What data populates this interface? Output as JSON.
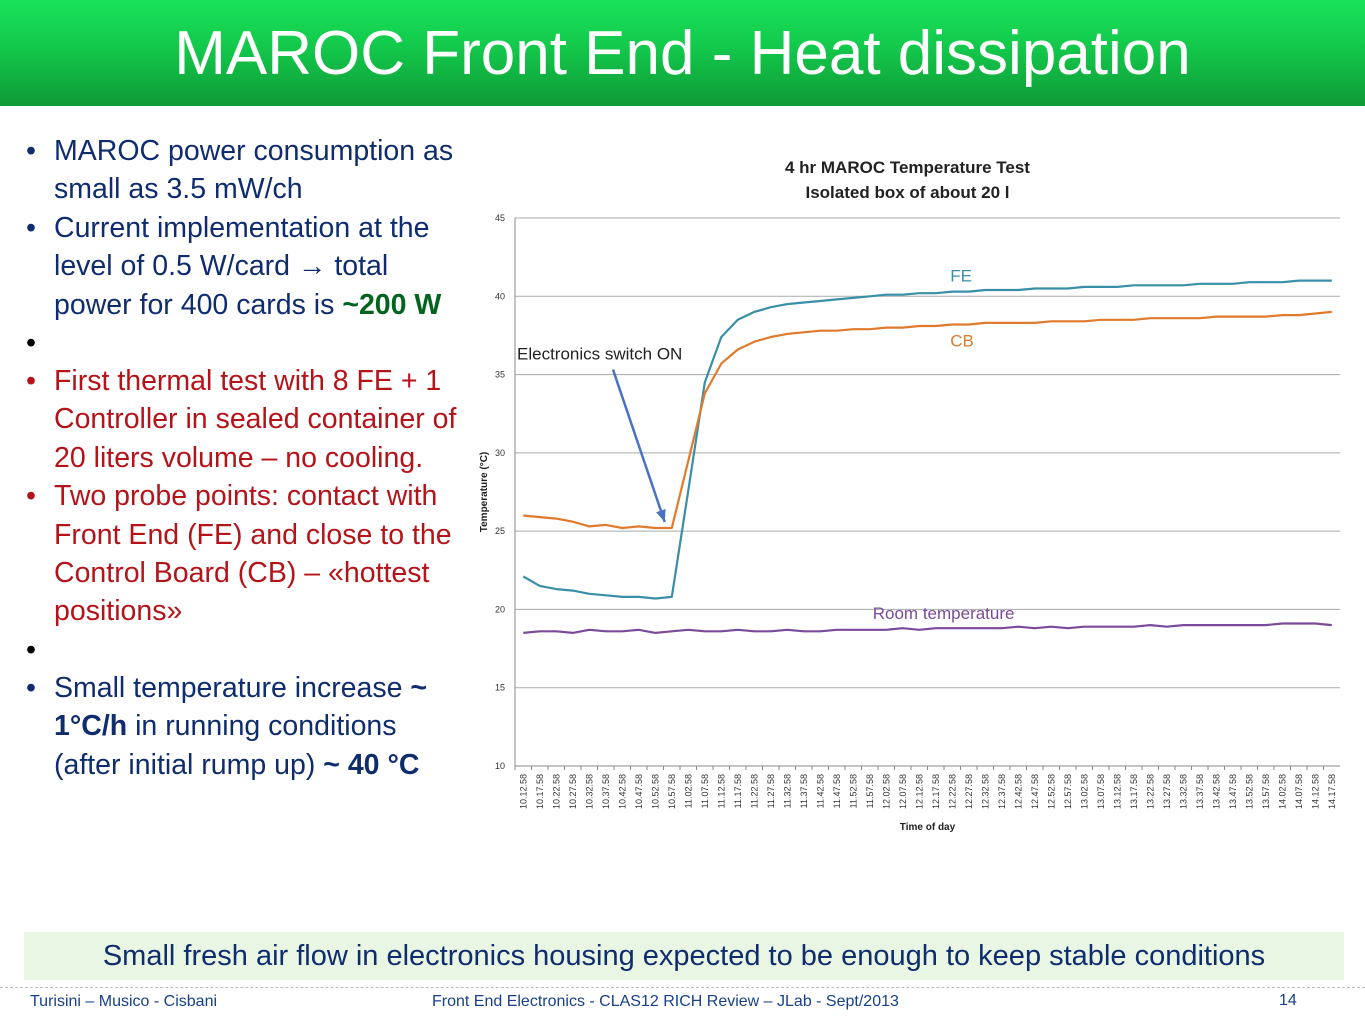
{
  "slide": {
    "title": "MAROC Front End - Heat dissipation",
    "bullets": [
      {
        "text": "MAROC power consumption as small as 3.5 mW/ch"
      },
      {
        "pre": "Current implementation at the level of 0.5 W/card → total power for 400 cards is ",
        "bold": "~200 W"
      },
      {
        "text": "First thermal test with 8 FE + 1 Controller in sealed container of 20 liters volume – no cooling."
      },
      {
        "text": "Two probe points: contact with Front End (FE) and close to the Control Board (CB) – «hottest positions»"
      },
      {
        "pre": "Small temperature increase ",
        "bold1": "~ 1°C/h",
        "mid": " in running conditions (after initial rump up) ",
        "bold2": "~ 40 °C"
      }
    ],
    "note": "Small fresh air flow in electronics housing expected to be enough to keep stable conditions",
    "footer": {
      "authors": "Turisini – Musico - Cisbani",
      "event": "Front End Electronics - CLAS12 RICH Review – JLab - Sept/2013",
      "page": "14"
    }
  },
  "colors": {
    "fe": "#3a8fa8",
    "cb": "#e07a2c",
    "room": "#7a4b9a",
    "arrow": "#4a72c4"
  },
  "chart_data": {
    "type": "line",
    "title": "4 hr MAROC Temperature Test",
    "subtitle": "Isolated box of about 20 l",
    "xlabel": "Time of day",
    "ylabel": "Temperature (°C)",
    "ylim": [
      10,
      45
    ],
    "yticks": [
      10,
      15,
      20,
      25,
      30,
      35,
      40,
      45
    ],
    "grid": true,
    "x": [
      "10.12.58",
      "10.17.58",
      "10.22.58",
      "10.27.58",
      "10.32.58",
      "10.37.58",
      "10.42.58",
      "10.47.58",
      "10.52.58",
      "10.57.58",
      "11.02.58",
      "11.07.58",
      "11.12.58",
      "11.17.58",
      "11.22.58",
      "11.27.58",
      "11.32.58",
      "11.37.58",
      "11.42.58",
      "11.47.58",
      "11.52.58",
      "11.57.58",
      "12.02.58",
      "12.07.58",
      "12.12.58",
      "12.17.58",
      "12.22.58",
      "12.27.58",
      "12.32.58",
      "12.37.58",
      "12.42.58",
      "12.47.58",
      "12.52.58",
      "12.57.58",
      "13.02.58",
      "13.07.58",
      "13.12.58",
      "13.17.58",
      "13.22.58",
      "13.27.58",
      "13.32.58",
      "13.37.58",
      "13.42.58",
      "13.47.58",
      "13.52.58",
      "13.57.58",
      "14.02.58",
      "14.07.58",
      "14.12.58",
      "14.17.58"
    ],
    "series": [
      {
        "name": "FE",
        "values": [
          22.1,
          21.5,
          21.3,
          21.2,
          21.0,
          20.9,
          20.8,
          20.8,
          20.7,
          20.8,
          27.6,
          34.5,
          37.4,
          38.5,
          39.0,
          39.3,
          39.5,
          39.6,
          39.7,
          39.8,
          39.9,
          40.0,
          40.1,
          40.1,
          40.2,
          40.2,
          40.3,
          40.3,
          40.4,
          40.4,
          40.4,
          40.5,
          40.5,
          40.5,
          40.6,
          40.6,
          40.6,
          40.7,
          40.7,
          40.7,
          40.7,
          40.8,
          40.8,
          40.8,
          40.9,
          40.9,
          40.9,
          41.0,
          41.0,
          41.0
        ]
      },
      {
        "name": "CB",
        "values": [
          26.0,
          25.9,
          25.8,
          25.6,
          25.3,
          25.4,
          25.2,
          25.3,
          25.2,
          25.2,
          29.5,
          33.8,
          35.7,
          36.6,
          37.1,
          37.4,
          37.6,
          37.7,
          37.8,
          37.8,
          37.9,
          37.9,
          38.0,
          38.0,
          38.1,
          38.1,
          38.2,
          38.2,
          38.3,
          38.3,
          38.3,
          38.3,
          38.4,
          38.4,
          38.4,
          38.5,
          38.5,
          38.5,
          38.6,
          38.6,
          38.6,
          38.6,
          38.7,
          38.7,
          38.7,
          38.7,
          38.8,
          38.8,
          38.9,
          39.0
        ]
      },
      {
        "name": "Room temperature",
        "values": [
          18.5,
          18.6,
          18.6,
          18.5,
          18.7,
          18.6,
          18.6,
          18.7,
          18.5,
          18.6,
          18.7,
          18.6,
          18.6,
          18.7,
          18.6,
          18.6,
          18.7,
          18.6,
          18.6,
          18.7,
          18.7,
          18.7,
          18.7,
          18.8,
          18.7,
          18.8,
          18.8,
          18.8,
          18.8,
          18.8,
          18.9,
          18.8,
          18.9,
          18.8,
          18.9,
          18.9,
          18.9,
          18.9,
          19.0,
          18.9,
          19.0,
          19.0,
          19.0,
          19.0,
          19.0,
          19.0,
          19.1,
          19.1,
          19.1,
          19.0
        ]
      }
    ],
    "annotations": [
      {
        "text": "Electronics switch ON",
        "points_to": "10.57.58"
      }
    ]
  }
}
